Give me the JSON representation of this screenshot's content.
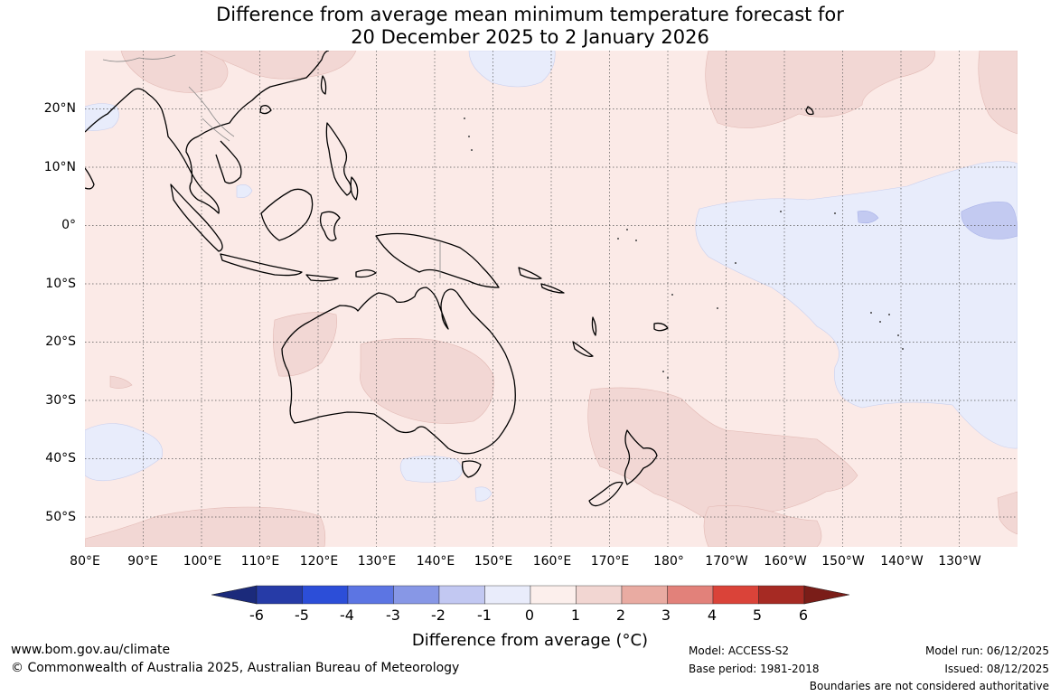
{
  "title": {
    "line1": "Difference from average mean minimum temperature forecast for",
    "line2": "20 December 2025 to 2 January 2026"
  },
  "map": {
    "lon_labels": [
      "80°E",
      "90°E",
      "100°E",
      "110°E",
      "120°E",
      "130°E",
      "140°E",
      "150°E",
      "160°E",
      "170°E",
      "180°",
      "170°W",
      "160°W",
      "150°W",
      "140°W",
      "130°W"
    ],
    "lat_labels": [
      "20°N",
      "10°N",
      "0°",
      "10°S",
      "20°S",
      "30°S",
      "40°S",
      "50°S"
    ],
    "colors": {
      "background_anomaly_0_to_1": "#fbeae7",
      "anomaly_1_to_2": "#f2d7d4",
      "anomaly_minus1_to_0": "#e8ecfb",
      "anomaly_minus2_to_minus1": "#c3caf1",
      "land_outline": "#000000",
      "graticule": "#555555"
    }
  },
  "colorbar": {
    "tick_labels": [
      "-6",
      "-5",
      "-4",
      "-3",
      "-2",
      "-1",
      "0",
      "1",
      "2",
      "3",
      "4",
      "5",
      "6"
    ],
    "colors": [
      "#1b2a7b",
      "#263ba7",
      "#2c4ed8",
      "#5c75e3",
      "#8797e6",
      "#c2c8f2",
      "#e9ecfb",
      "#fcefec",
      "#f2d6d2",
      "#e9aba2",
      "#e2817a",
      "#da4339",
      "#a62a23",
      "#7a1d18"
    ],
    "title": "Difference from average (°C)"
  },
  "footer": {
    "website": "www.bom.gov.au/climate",
    "copyright": "© Commonwealth of Australia 2025, Australian Bureau of Meteorology",
    "model": "Model: ACCESS-S2",
    "base_period": "Base period: 1981-2018",
    "model_run": "Model run: 06/12/2025",
    "issued": "Issued: 08/12/2025",
    "disclaimer": "Boundaries are not considered authoritative"
  }
}
